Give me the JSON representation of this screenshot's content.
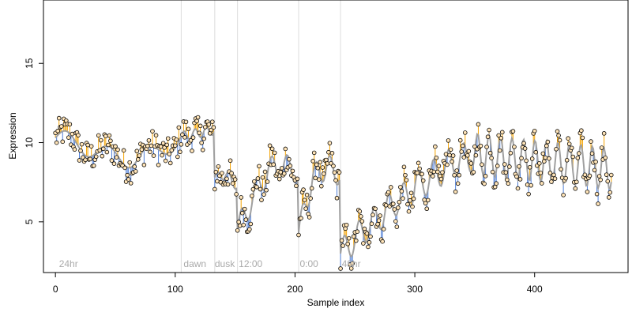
{
  "chart_data": {
    "type": "scatter",
    "title": "",
    "xlabel": "Sample index",
    "ylabel": "Expression",
    "xlim": [
      -10,
      478
    ],
    "ylim": [
      1.8,
      19
    ],
    "x_ticks": [
      0,
      100,
      200,
      300,
      400
    ],
    "y_ticks": [
      5,
      10,
      15
    ],
    "grid": false,
    "phase_boundaries": [
      105,
      133,
      152,
      203,
      238
    ],
    "phase_labels": [
      {
        "text": "24hr",
        "x": 3
      },
      {
        "text": "dawn",
        "x": 107
      },
      {
        "text": "dusk",
        "x": 133
      },
      {
        "text": "12:00",
        "x": 153
      },
      {
        "text": "0:00",
        "x": 204
      },
      {
        "text": "48hr",
        "x": 239
      }
    ],
    "colors": {
      "points_fill": "#ffe4b8",
      "points_stroke": "#000000",
      "fit_line": "#a0a0a0",
      "residual_positive": "#f5a300",
      "residual_negative": "#4f7fd8",
      "phase_line": "#dddddd"
    },
    "segments": [
      {
        "x": [
          0,
          105
        ],
        "trend": [
          10.3,
          9.9,
          9.2,
          9.0,
          9.3,
          10.4
        ],
        "waves": 3,
        "amp": 0.6
      },
      {
        "x": [
          105,
          133
        ],
        "trend": [
          10.4,
          10.6,
          10.8
        ],
        "waves": 3,
        "amp": 0.3
      },
      {
        "x": [
          133,
          152
        ],
        "trend": [
          7.8,
          8.0,
          7.2
        ],
        "waves": 2,
        "amp": 0.3
      },
      {
        "x": [
          152,
          203
        ],
        "trend": [
          4.5,
          6.5,
          8.3,
          8.5,
          8.2
        ],
        "waves": 4,
        "amp": 0.8
      },
      {
        "x": [
          203,
          238
        ],
        "trend": [
          4.3,
          7.8,
          8.5,
          8.0
        ],
        "waves": 3,
        "amp": 0.8
      },
      {
        "x": [
          238,
          300
        ],
        "trend": [
          3.0,
          4.2,
          5.2,
          6.3,
          7.0
        ],
        "waves": 5,
        "amp": 0.9
      },
      {
        "x": [
          300,
          350
        ],
        "trend": [
          7.2,
          8.0,
          8.8,
          9.2
        ],
        "waves": 4,
        "amp": 1.0
      },
      {
        "x": [
          350,
          465
        ],
        "trend": [
          9.3,
          9.0,
          8.8,
          8.6,
          8.3
        ],
        "waves": 12,
        "amp": 1.3
      }
    ]
  }
}
